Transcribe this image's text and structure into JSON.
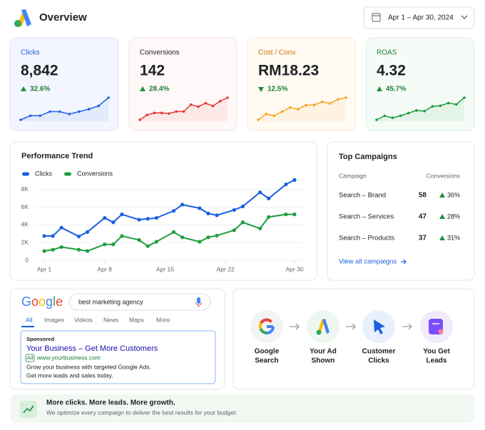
{
  "header": {
    "title": "Overview",
    "date_range": "Apr 1 – Apr 30, 2024"
  },
  "kpis": [
    {
      "label": "Clicks",
      "value": "8,842",
      "change": "32.6%",
      "sparkline": {
        "type": "line",
        "color": "#2563eb",
        "values": [
          3,
          8,
          8,
          13,
          13,
          10,
          13,
          16,
          20,
          30
        ]
      }
    },
    {
      "label": "Conversions",
      "value": "142",
      "change": "28.4%",
      "sparkline": {
        "type": "line",
        "color": "#e53935",
        "values": [
          3,
          10,
          13,
          13,
          12,
          15,
          15,
          25,
          22,
          27,
          23,
          30,
          35
        ]
      }
    },
    {
      "label": "Cost / Conv.",
      "value": "RM18.23",
      "change": "12.5%",
      "sparkline": {
        "type": "line",
        "color": "#f5a623",
        "values": [
          5,
          12,
          10,
          15,
          20,
          18,
          23,
          23,
          27,
          25,
          30,
          32
        ]
      }
    },
    {
      "label": "ROAS",
      "value": "4.32",
      "change": "45.7%",
      "sparkline": {
        "type": "line",
        "color": "#1e9e3e",
        "values": [
          2,
          8,
          5,
          8,
          12,
          16,
          15,
          22,
          23,
          27,
          25,
          35
        ]
      }
    }
  ],
  "performance_trend": {
    "type": "line",
    "title": "Performance Trend",
    "x": [
      1,
      2,
      3,
      5,
      6,
      8,
      9,
      10,
      12,
      13,
      14,
      16,
      17,
      19,
      20,
      21,
      23,
      24,
      26,
      27,
      29,
      30
    ],
    "series": [
      {
        "name": "Clicks",
        "color": "#1a5fe0",
        "values": [
          2750,
          2750,
          3700,
          2700,
          3200,
          4800,
          4300,
          5200,
          4600,
          4700,
          4800,
          5600,
          6300,
          5900,
          5300,
          5100,
          5700,
          6100,
          7700,
          7000,
          8600,
          9100
        ]
      },
      {
        "name": "Conversions",
        "color": "#1e9e3e",
        "values": [
          1050,
          1200,
          1500,
          1200,
          1050,
          1800,
          1800,
          2750,
          2300,
          1600,
          2100,
          3200,
          2600,
          2100,
          2600,
          2800,
          3400,
          4300,
          3600,
          4900,
          5200,
          5200
        ]
      }
    ],
    "xlim": [
      1,
      30
    ],
    "xticks": [
      {
        "value": 1,
        "label": "Apr 1"
      },
      {
        "value": 8,
        "label": "Apr 8"
      },
      {
        "value": 15,
        "label": "Apr 15"
      },
      {
        "value": 22,
        "label": "Apr 22"
      },
      {
        "value": 30,
        "label": "Apr 30"
      }
    ],
    "ylim": [
      0,
      9500
    ],
    "yticks": [
      0,
      {
        "value": 2000,
        "label": "2K"
      },
      {
        "value": 4000,
        "label": "4K"
      },
      {
        "value": 6000,
        "label": "6K"
      },
      {
        "value": 8000,
        "label": "8K"
      }
    ],
    "grid": true
  },
  "top_campaigns": {
    "title": "Top Campaigns",
    "columns": [
      "Campaign",
      "Conversions"
    ],
    "rows": [
      {
        "name": "Search – Brand",
        "conversions": 58,
        "change": "36%"
      },
      {
        "name": "Search – Services",
        "conversions": 47,
        "change": "28%"
      },
      {
        "name": "Search – Products",
        "conversions": 37,
        "change": "31%"
      }
    ],
    "link": "View all campaigns"
  },
  "search_preview": {
    "logo": "Google",
    "logo_colors": [
      "#4285f4",
      "#ea4335",
      "#fbbc05",
      "#4285f4",
      "#34a853",
      "#ea4335"
    ],
    "query": "best marketing agency",
    "tabs": [
      "All",
      "Images",
      "Videos",
      "News",
      "Maps",
      "More"
    ],
    "ad": {
      "sponsored": "Sponsored",
      "headline": "Your Business – Get More Customers",
      "badge": "Ad",
      "url": "www.yourbusiness.com",
      "lines": [
        "Grow your business with targeted Google Ads.",
        "Get more leads and sales today."
      ]
    }
  },
  "flow": {
    "steps": [
      [
        "Google",
        "Search"
      ],
      [
        "Your Ad",
        "Shown"
      ],
      [
        "Customer",
        "Clicks"
      ],
      [
        "You Get",
        "Leads"
      ]
    ]
  },
  "banner": {
    "title": "More clicks. More leads. More growth.",
    "text": "We optimize every campaign to deliver the best results for your budget."
  }
}
